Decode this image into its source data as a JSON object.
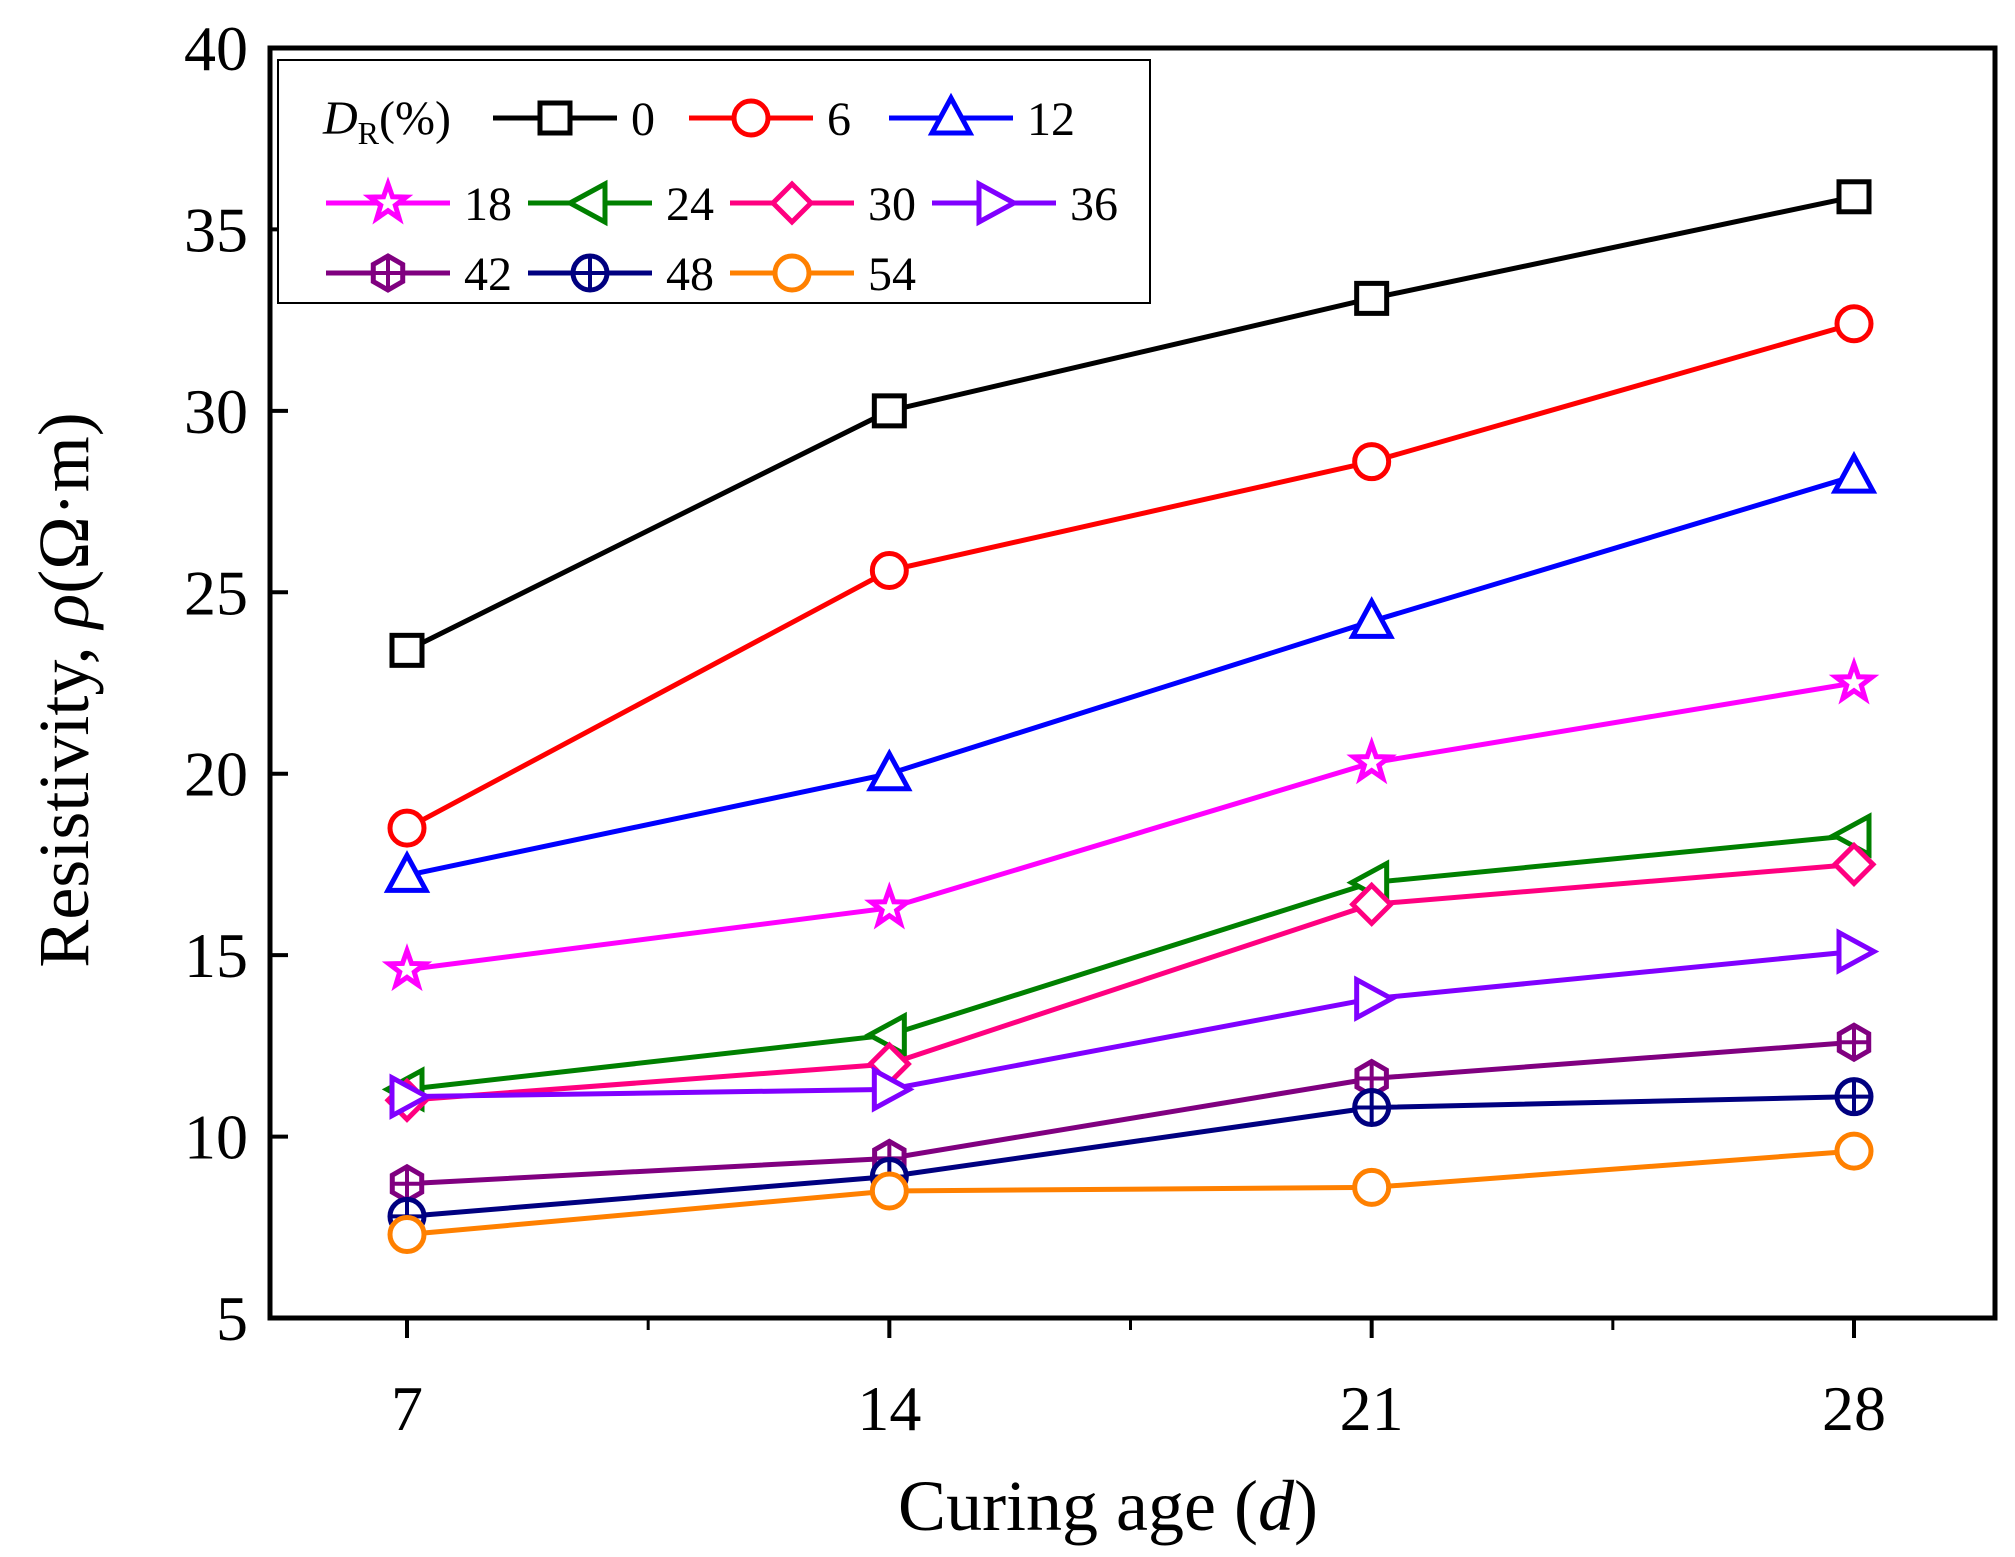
{
  "chart_data": {
    "type": "line",
    "title": "",
    "xlabel": "Curing age (d)",
    "xlabel_parts": [
      "Curing age (",
      "d",
      ")"
    ],
    "ylabel_parts": [
      "Resistivity, ",
      "ρ",
      "(Ω·m)"
    ],
    "ylabel": "Resistivity, ρ(Ω·m)",
    "x": [
      7,
      14,
      21,
      28
    ],
    "x_ticks": [
      "7",
      "14",
      "21",
      "28"
    ],
    "xlim": [
      5,
      30
    ],
    "ylim": [
      5,
      40
    ],
    "y_ticks": [
      "5",
      "10",
      "15",
      "20",
      "25",
      "30",
      "35",
      "40"
    ],
    "grid": false,
    "legend": {
      "placement": "top-left",
      "title_main": "D",
      "title_sub": "R",
      "title_rest": "(%)"
    },
    "series": [
      {
        "name": "0",
        "color": "#000000",
        "marker": "square",
        "values": [
          23.4,
          30.0,
          33.1,
          35.9
        ]
      },
      {
        "name": "6",
        "color": "#ff0000",
        "marker": "circle",
        "values": [
          18.5,
          25.6,
          28.6,
          32.4
        ]
      },
      {
        "name": "12",
        "color": "#0000ff",
        "marker": "triangle-up",
        "values": [
          17.2,
          20.0,
          24.2,
          28.2
        ]
      },
      {
        "name": "18",
        "color": "#ff00ff",
        "marker": "star",
        "values": [
          14.6,
          16.3,
          20.3,
          22.5
        ]
      },
      {
        "name": "24",
        "color": "#008000",
        "marker": "triangle-left",
        "values": [
          11.3,
          12.8,
          17.0,
          18.3
        ]
      },
      {
        "name": "30",
        "color": "#ff0080",
        "marker": "diamond",
        "values": [
          11.0,
          12.0,
          16.4,
          17.5
        ]
      },
      {
        "name": "36",
        "color": "#8000ff",
        "marker": "triangle-right",
        "values": [
          11.1,
          11.3,
          13.8,
          15.1
        ]
      },
      {
        "name": "42",
        "color": "#800080",
        "marker": "hexagon-plus",
        "values": [
          8.7,
          9.4,
          11.6,
          12.6
        ]
      },
      {
        "name": "48",
        "color": "#000080",
        "marker": "circle-plus",
        "values": [
          7.8,
          8.9,
          10.8,
          11.1
        ]
      },
      {
        "name": "54",
        "color": "#ff8000",
        "marker": "circle",
        "values": [
          7.3,
          8.5,
          8.6,
          9.6
        ]
      }
    ]
  }
}
